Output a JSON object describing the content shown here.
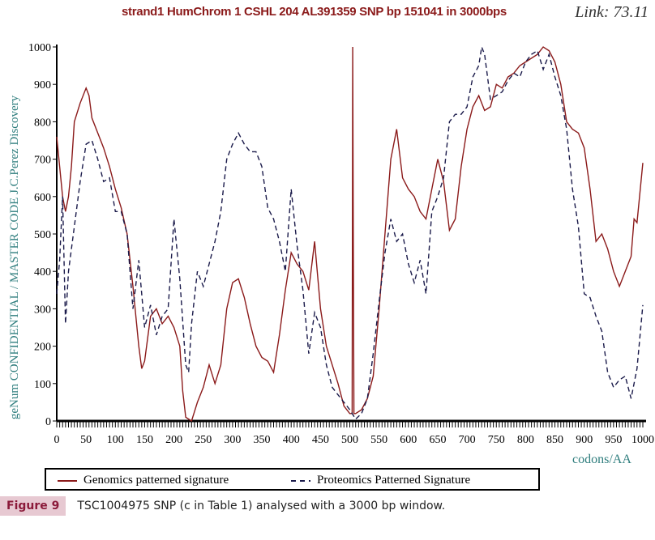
{
  "chart_data": {
    "type": "line",
    "title": "strand1 HumChrom  1 CSHL 204 AL391359  SNP bp 151041  in 3000bps",
    "link_label": "Link: 73.11",
    "xlabel": "codons/AA",
    "ylabel": "geNum CONFIDENTIAL / MASTER CODE J.C.Perez Discovery",
    "xlim": [
      0,
      1000
    ],
    "ylim": [
      0,
      1000
    ],
    "xticks": [
      0,
      50,
      100,
      150,
      200,
      250,
      300,
      350,
      400,
      450,
      500,
      550,
      600,
      650,
      700,
      750,
      800,
      850,
      900,
      950,
      1000
    ],
    "yticks": [
      0,
      100,
      200,
      300,
      400,
      500,
      600,
      700,
      800,
      900,
      1000
    ],
    "grid": false,
    "legend_position": "bottom",
    "series": [
      {
        "name": "Genomics patterned signature",
        "color": "#8b1a1a",
        "style": "solid",
        "x": [
          0,
          5,
          10,
          15,
          20,
          25,
          30,
          40,
          50,
          55,
          60,
          70,
          80,
          90,
          100,
          110,
          120,
          130,
          140,
          145,
          150,
          160,
          170,
          180,
          190,
          200,
          210,
          215,
          220,
          230,
          240,
          250,
          260,
          270,
          280,
          290,
          300,
          310,
          320,
          330,
          340,
          350,
          360,
          370,
          380,
          390,
          400,
          410,
          420,
          430,
          440,
          450,
          460,
          470,
          480,
          490,
          500,
          504,
          505,
          506,
          507,
          510,
          520,
          530,
          540,
          550,
          560,
          570,
          580,
          590,
          600,
          610,
          620,
          630,
          640,
          650,
          660,
          670,
          680,
          690,
          700,
          710,
          720,
          730,
          740,
          750,
          760,
          770,
          780,
          790,
          800,
          810,
          820,
          830,
          840,
          850,
          860,
          870,
          880,
          890,
          900,
          910,
          920,
          930,
          940,
          950,
          960,
          970,
          980,
          985,
          990,
          1000
        ],
        "y": [
          760,
          680,
          600,
          560,
          600,
          680,
          800,
          850,
          890,
          870,
          810,
          770,
          730,
          680,
          620,
          570,
          500,
          360,
          200,
          140,
          160,
          280,
          300,
          260,
          280,
          250,
          200,
          80,
          10,
          0,
          50,
          90,
          150,
          100,
          150,
          300,
          370,
          380,
          330,
          260,
          200,
          170,
          160,
          130,
          230,
          350,
          450,
          420,
          400,
          350,
          480,
          300,
          200,
          150,
          100,
          40,
          20,
          20,
          1000,
          500,
          20,
          20,
          30,
          60,
          120,
          300,
          500,
          700,
          780,
          650,
          620,
          600,
          560,
          540,
          620,
          700,
          640,
          510,
          540,
          680,
          780,
          840,
          870,
          830,
          840,
          900,
          890,
          920,
          930,
          950,
          960,
          970,
          980,
          1000,
          990,
          960,
          900,
          800,
          780,
          770,
          730,
          620,
          480,
          500,
          460,
          400,
          360,
          400,
          440,
          540,
          530,
          690
        ]
      },
      {
        "name": "Proteomics Patterned Signature",
        "color": "#1a1a4a",
        "style": "dashed",
        "x": [
          0,
          5,
          10,
          15,
          20,
          25,
          30,
          40,
          50,
          60,
          70,
          80,
          90,
          100,
          110,
          120,
          130,
          140,
          150,
          160,
          170,
          180,
          190,
          200,
          210,
          220,
          225,
          230,
          240,
          250,
          260,
          270,
          280,
          290,
          300,
          310,
          320,
          330,
          340,
          350,
          360,
          370,
          380,
          390,
          400,
          410,
          420,
          430,
          440,
          450,
          460,
          470,
          480,
          490,
          500,
          510,
          520,
          530,
          540,
          550,
          560,
          570,
          580,
          590,
          600,
          610,
          620,
          630,
          640,
          650,
          660,
          670,
          680,
          690,
          700,
          710,
          720,
          725,
          730,
          740,
          750,
          760,
          770,
          780,
          790,
          800,
          810,
          820,
          830,
          840,
          850,
          860,
          870,
          880,
          890,
          900,
          910,
          920,
          930,
          940,
          950,
          960,
          970,
          980,
          990,
          1000
        ],
        "y": [
          340,
          430,
          600,
          260,
          400,
          460,
          520,
          640,
          740,
          750,
          700,
          640,
          650,
          560,
          560,
          500,
          300,
          430,
          250,
          310,
          230,
          280,
          300,
          540,
          380,
          150,
          130,
          260,
          400,
          360,
          420,
          480,
          560,
          700,
          740,
          770,
          740,
          720,
          720,
          680,
          570,
          540,
          480,
          400,
          620,
          470,
          350,
          180,
          290,
          250,
          150,
          90,
          70,
          50,
          30,
          5,
          20,
          60,
          180,
          320,
          450,
          540,
          480,
          500,
          420,
          370,
          430,
          340,
          560,
          600,
          650,
          800,
          820,
          820,
          840,
          920,
          950,
          1000,
          980,
          860,
          870,
          880,
          910,
          930,
          920,
          960,
          980,
          990,
          940,
          980,
          920,
          870,
          780,
          620,
          520,
          340,
          330,
          280,
          240,
          130,
          90,
          110,
          120,
          60,
          140,
          310
        ]
      }
    ]
  },
  "legend": {
    "genomics": "Genomics patterned signature",
    "proteomics": "Proteomics Patterned Signature"
  },
  "caption": {
    "label": "Figure 9",
    "text": "TSC1004975 SNP (c in Table 1) analysed with a 3000 bp window."
  }
}
